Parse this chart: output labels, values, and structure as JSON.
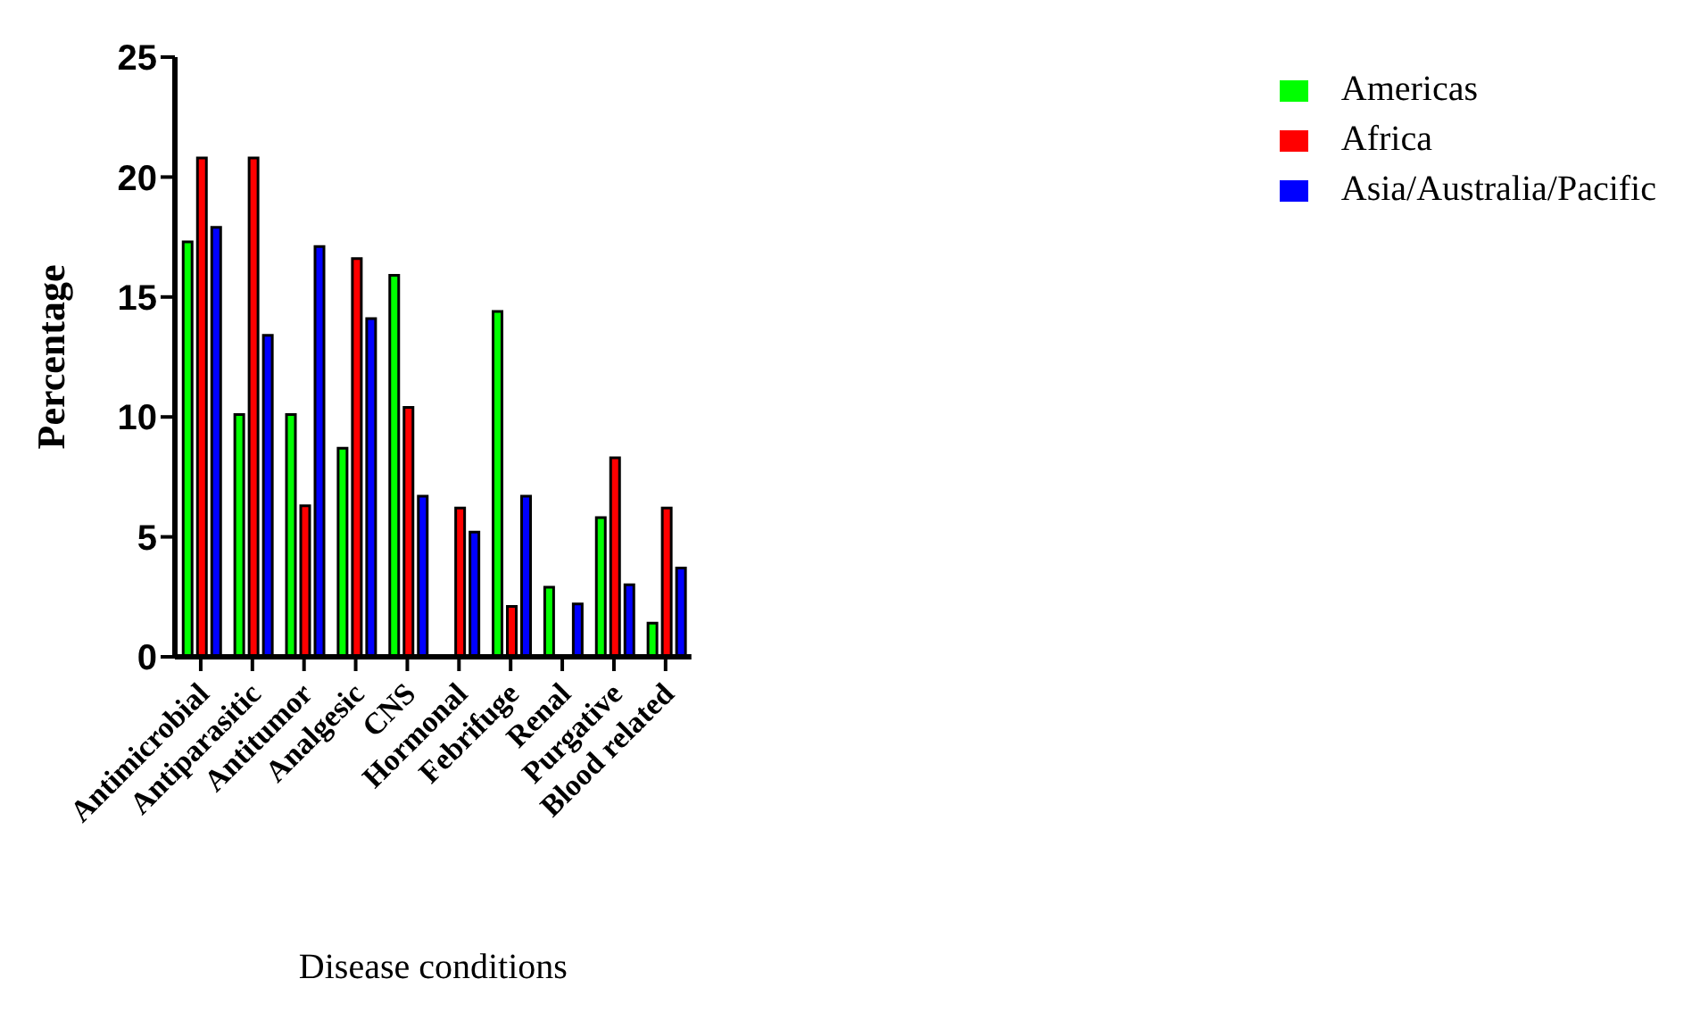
{
  "chart_data": {
    "type": "bar",
    "xlabel": "Disease conditions",
    "ylabel": "Percentage",
    "categories": [
      "Antimicrobial",
      "Antiparasitic",
      "Antitumor",
      "Analgesic",
      "CNS",
      "Hormonal",
      "Febrifuge",
      "Renal",
      "Purgative",
      "Blood related"
    ],
    "series": [
      {
        "name": "Americas",
        "color": "#00ff00",
        "values": [
          17.3,
          10.1,
          10.1,
          8.7,
          15.9,
          null,
          14.4,
          2.9,
          5.8,
          1.4
        ]
      },
      {
        "name": "Africa",
        "color": "#ff0000",
        "values": [
          20.8,
          20.8,
          6.3,
          16.6,
          10.4,
          6.2,
          2.1,
          null,
          8.3,
          6.2
        ]
      },
      {
        "name": "Asia/Australia/Pacific",
        "color": "#0000ff",
        "values": [
          17.9,
          13.4,
          17.1,
          14.1,
          6.7,
          5.2,
          6.7,
          2.2,
          3.0,
          3.7
        ]
      }
    ],
    "ylim": [
      0,
      25
    ],
    "yticks": [
      0,
      5,
      10,
      15,
      20,
      25
    ],
    "grid": false,
    "legend": "top right"
  }
}
